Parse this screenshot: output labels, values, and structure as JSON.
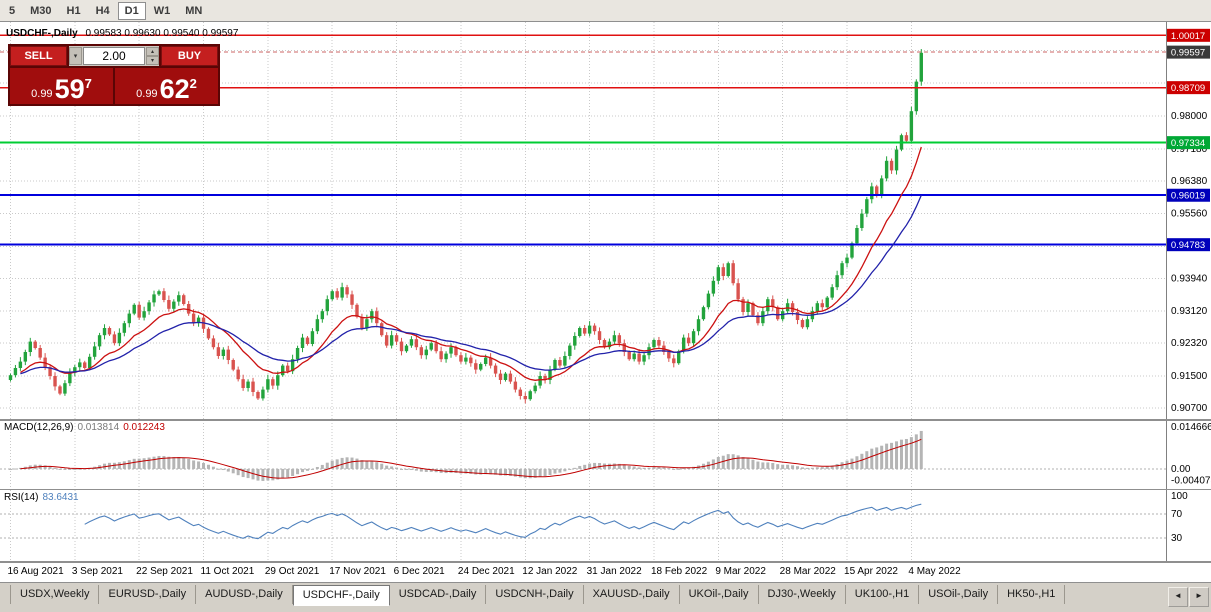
{
  "toolbar": {
    "timeframes": [
      "5",
      "M30",
      "H1",
      "H4",
      "D1",
      "W1",
      "MN"
    ],
    "active": "D1"
  },
  "chart": {
    "title_symbol": "USDCHF-,Daily",
    "title_ohlc": "0.99583 0.99630 0.99540 0.99597"
  },
  "trade_panel": {
    "sell_label": "SELL",
    "buy_label": "BUY",
    "volume": "2.00",
    "bid_prefix": "0.99",
    "bid_big": "59",
    "bid_sup": "7",
    "ask_prefix": "0.99",
    "ask_big": "62",
    "ask_sup": "2"
  },
  "indicators": {
    "macd": {
      "name": "MACD(12,26,9)",
      "value1": "0.013814",
      "value2": "0.012243"
    },
    "rsi": {
      "name": "RSI(14)",
      "value": "83.6431"
    }
  },
  "tabs": {
    "items": [
      "USDX,Weekly",
      "EURUSD-,Daily",
      "AUDUSD-,Daily",
      "USDCHF-,Daily",
      "USDCAD-,Daily",
      "USDCNH-,Daily",
      "XAUUSD-,Daily",
      "UKOil-,Daily",
      "DJ30-,Weekly",
      "UK100-,H1",
      "USOil-,Daily",
      "HK50-,H1"
    ],
    "active_index": 3
  },
  "colors": {
    "candle_up": "#22a33c",
    "candle_down": "#d9534f",
    "ma_fast": "#cc1111",
    "ma_slow": "#2222aa",
    "grid": "#c9c9c9",
    "macd_hist": "#b5b5b5",
    "macd_signal": "#c00000",
    "rsi_line": "#4f81bd",
    "axis_text": "#000000"
  },
  "chart_data": {
    "type": "candlestick",
    "symbol": "USDCHF",
    "timeframe": "Daily",
    "last_price": 0.99597,
    "price_range": [
      0.9055,
      1.002
    ],
    "closes": [
      0.9152,
      0.917,
      0.9186,
      0.921,
      0.9236,
      0.922,
      0.9196,
      0.9172,
      0.915,
      0.9124,
      0.9106,
      0.9132,
      0.9158,
      0.9172,
      0.9184,
      0.917,
      0.9198,
      0.9224,
      0.9252,
      0.927,
      0.9254,
      0.9232,
      0.9258,
      0.9282,
      0.9306,
      0.9328,
      0.9296,
      0.9312,
      0.9334,
      0.9354,
      0.9362,
      0.934,
      0.9318,
      0.9336,
      0.9352,
      0.933,
      0.9306,
      0.9282,
      0.9296,
      0.9268,
      0.9244,
      0.9222,
      0.92,
      0.9216,
      0.919,
      0.9166,
      0.9142,
      0.912,
      0.9136,
      0.911,
      0.9094,
      0.9116,
      0.9142,
      0.9126,
      0.9152,
      0.9176,
      0.9162,
      0.9192,
      0.922,
      0.9246,
      0.923,
      0.9262,
      0.9292,
      0.9312,
      0.9342,
      0.9362,
      0.9346,
      0.9372,
      0.9354,
      0.9328,
      0.9298,
      0.927,
      0.9292,
      0.9312,
      0.9282,
      0.9252,
      0.9226,
      0.9252,
      0.9236,
      0.9212,
      0.9226,
      0.9242,
      0.9222,
      0.9202,
      0.9216,
      0.9232,
      0.9212,
      0.9192,
      0.9206,
      0.9222,
      0.9202,
      0.9186,
      0.9196,
      0.9182,
      0.9166,
      0.918,
      0.9196,
      0.9176,
      0.9156,
      0.914,
      0.9156,
      0.9136,
      0.9116,
      0.91,
      0.9092,
      0.9112,
      0.9126,
      0.915,
      0.914,
      0.9166,
      0.919,
      0.9176,
      0.92,
      0.9226,
      0.925,
      0.927,
      0.9256,
      0.9276,
      0.9262,
      0.924,
      0.9222,
      0.9236,
      0.9252,
      0.9232,
      0.921,
      0.9192,
      0.9206,
      0.9186,
      0.9202,
      0.9222,
      0.924,
      0.9226,
      0.921,
      0.9194,
      0.9182,
      0.9212,
      0.9246,
      0.9232,
      0.9262,
      0.9292,
      0.9322,
      0.9356,
      0.9388,
      0.9422,
      0.94,
      0.9432,
      0.9382,
      0.9342,
      0.931,
      0.9332,
      0.9302,
      0.9282,
      0.9312,
      0.9342,
      0.9322,
      0.9292,
      0.9312,
      0.9332,
      0.931,
      0.929,
      0.9272,
      0.9292,
      0.9312,
      0.9332,
      0.9322,
      0.9346,
      0.9372,
      0.9402,
      0.9432,
      0.9446,
      0.9482,
      0.952,
      0.9556,
      0.9592,
      0.9624,
      0.96,
      0.9644,
      0.9688,
      0.9664,
      0.9716,
      0.9752,
      0.9738,
      0.9812,
      0.9886,
      0.9958
    ],
    "x_ticks": [
      {
        "i": 0,
        "label": "16 Aug 2021"
      },
      {
        "i": 13,
        "label": "3 Sep 2021"
      },
      {
        "i": 26,
        "label": "22 Sep 2021"
      },
      {
        "i": 39,
        "label": "11 Oct 2021"
      },
      {
        "i": 52,
        "label": "29 Oct 2021"
      },
      {
        "i": 65,
        "label": "17 Nov 2021"
      },
      {
        "i": 78,
        "label": "6 Dec 2021"
      },
      {
        "i": 91,
        "label": "24 Dec 2021"
      },
      {
        "i": 104,
        "label": "12 Jan 2022"
      },
      {
        "i": 117,
        "label": "31 Jan 2022"
      },
      {
        "i": 130,
        "label": "18 Feb 2022"
      },
      {
        "i": 143,
        "label": "9 Mar 2022"
      },
      {
        "i": 156,
        "label": "28 Mar 2022"
      },
      {
        "i": 169,
        "label": "15 Apr 2022"
      },
      {
        "i": 182,
        "label": "4 May 2022"
      }
    ],
    "y_ticks": [
      {
        "v": 0.9964,
        "label": ""
      },
      {
        "v": 0.9882,
        "label": ""
      },
      {
        "v": 0.98,
        "label": "0.98000"
      },
      {
        "v": 0.9718,
        "label": "0.97180"
      },
      {
        "v": 0.9638,
        "label": "0.96380"
      },
      {
        "v": 0.9556,
        "label": "0.95560"
      },
      {
        "v": 0.9474,
        "label": ""
      },
      {
        "v": 0.9394,
        "label": "0.93940"
      },
      {
        "v": 0.9312,
        "label": "0.93120"
      },
      {
        "v": 0.9232,
        "label": "0.92320"
      },
      {
        "v": 0.915,
        "label": "0.91500"
      },
      {
        "v": 0.907,
        "label": "0.90700"
      }
    ],
    "levels": [
      {
        "price": 1.00017,
        "label": "1.00017",
        "line_color": "#e01010",
        "badge_color": "#cc0000",
        "style": "solid",
        "width": 1.3
      },
      {
        "price": 0.99597,
        "label": "0.99597",
        "line_color": "#cc6666",
        "badge_color": "#3a3a3a",
        "style": "dash",
        "width": 1
      },
      {
        "price": 0.98709,
        "label": "0.98709",
        "line_color": "#e01010",
        "badge_color": "#cc0000",
        "style": "solid",
        "width": 1.3
      },
      {
        "price": 0.97334,
        "label": "0.97334",
        "line_color": "#00cc33",
        "badge_color": "#00a835",
        "style": "solid",
        "width": 2
      },
      {
        "price": 0.96019,
        "label": "0.96019",
        "line_color": "#0000dd",
        "badge_color": "#0000bb",
        "style": "solid",
        "width": 2
      },
      {
        "price": 0.94783,
        "label": "0.94783",
        "line_color": "#0000dd",
        "badge_color": "#0000bb",
        "style": "solid",
        "width": 2
      }
    ],
    "macd": {
      "params": [
        12,
        26,
        9
      ],
      "range": [
        -0.006,
        0.0158
      ],
      "axis": [
        {
          "v": 0.014666,
          "label": "0.014666"
        },
        {
          "v": 0,
          "label": "0.00"
        },
        {
          "v": -0.004078,
          "label": "-0.004078"
        }
      ]
    },
    "rsi": {
      "period": 14,
      "range": [
        0,
        100
      ],
      "levels": [
        70,
        30
      ],
      "axis": [
        {
          "v": 100,
          "label": "100"
        },
        {
          "v": 70,
          "label": "70"
        },
        {
          "v": 30,
          "label": "30"
        }
      ]
    }
  }
}
